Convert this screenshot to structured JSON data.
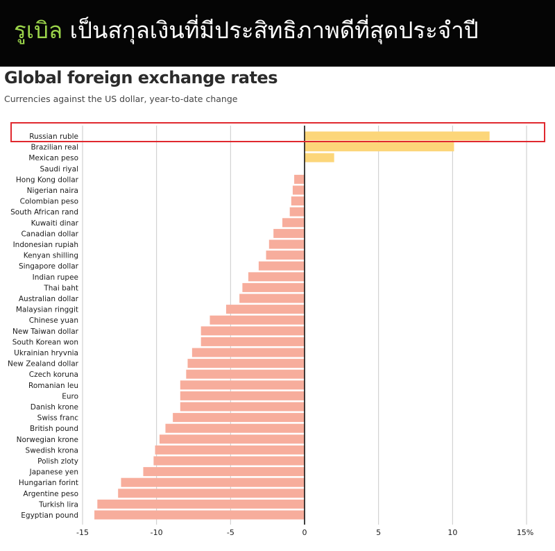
{
  "banner": {
    "highlight": "รูเบิล",
    "rest": " เป็นสกุลเงินที่มีประสิทธิภาพดีที่สุดประจำปี"
  },
  "colors": {
    "positive": "#fcd67a",
    "negative": "#f7ad9c",
    "highlight_box": "#e0282e",
    "banner_bg": "#050505",
    "banner_highlight": "#9bd44a"
  },
  "chart_data": {
    "type": "bar",
    "orientation": "horizontal",
    "title": "Global foreign exchange rates",
    "subtitle": "Currencies against the US dollar, year-to-date change",
    "xlabel": "",
    "ylabel": "",
    "xlim": [
      -15,
      15
    ],
    "xticks": [
      "-15",
      "-10",
      "-5",
      "0",
      "5",
      "10",
      "15%"
    ],
    "xtick_values": [
      -15,
      -10,
      -5,
      0,
      5,
      10,
      15
    ],
    "grid": true,
    "highlighted_category": "Russian ruble",
    "categories": [
      "Russian ruble",
      "Brazilian real",
      "Mexican peso",
      "Saudi riyal",
      "Hong Kong dollar",
      "Nigerian naira",
      "Colombian peso",
      "South African rand",
      "Kuwaiti dinar",
      "Canadian dollar",
      "Indonesian rupiah",
      "Kenyan shilling",
      "Singapore dollar",
      "Indian rupee",
      "Thai baht",
      "Australian dollar",
      "Malaysian ringgit",
      "Chinese yuan",
      "New Taiwan dollar",
      "South Korean won",
      "Ukrainian hryvnia",
      "New Zealand dollar",
      "Czech koruna",
      "Romanian leu",
      "Euro",
      "Danish krone",
      "Swiss franc",
      "British pound",
      "Norwegian krone",
      "Swedish krona",
      "Polish zloty",
      "Japanese yen",
      "Hungarian forint",
      "Argentine peso",
      "Turkish lira",
      "Egyptian pound"
    ],
    "values": [
      12.5,
      10.1,
      2.0,
      0.0,
      -0.7,
      -0.8,
      -0.9,
      -1.0,
      -1.5,
      -2.1,
      -2.4,
      -2.6,
      -3.1,
      -3.8,
      -4.2,
      -4.4,
      -5.3,
      -6.4,
      -7.0,
      -7.0,
      -7.6,
      -7.9,
      -8.0,
      -8.4,
      -8.4,
      -8.4,
      -8.9,
      -9.4,
      -9.8,
      -10.1,
      -10.2,
      -10.9,
      -12.4,
      -12.6,
      -14.0,
      -14.2
    ]
  }
}
